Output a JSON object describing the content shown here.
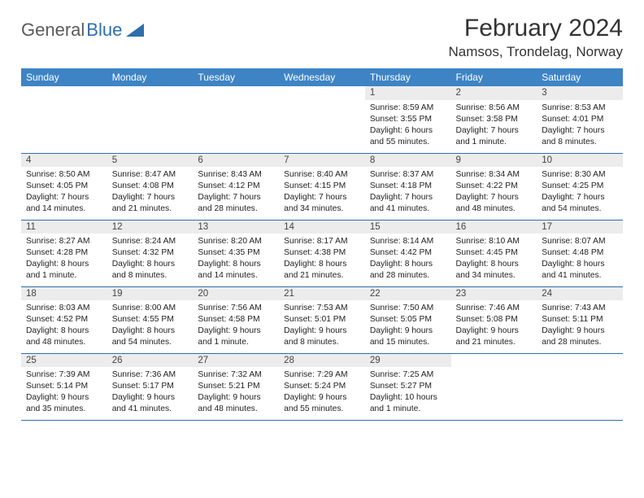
{
  "logo": {
    "text_a": "General",
    "text_b": "Blue"
  },
  "title": "February 2024",
  "location": "Namsos, Trondelag, Norway",
  "colors": {
    "header_bg": "#3e84c5",
    "header_text": "#ffffff",
    "daynum_bg": "#ececed",
    "border": "#2e6fab",
    "page_bg": "#ffffff",
    "body_text": "#222222",
    "logo_gray": "#5a5a5a",
    "logo_blue": "#2e6fab"
  },
  "typography": {
    "title_fontsize": 30,
    "location_fontsize": 17,
    "dayheader_fontsize": 12,
    "daynum_fontsize": 11.5,
    "cell_fontsize": 10.3
  },
  "weekdays": [
    "Sunday",
    "Monday",
    "Tuesday",
    "Wednesday",
    "Thursday",
    "Friday",
    "Saturday"
  ],
  "weeks": [
    [
      null,
      null,
      null,
      null,
      {
        "n": "1",
        "sunrise": "Sunrise: 8:59 AM",
        "sunset": "Sunset: 3:55 PM",
        "day": "Daylight: 6 hours and 55 minutes."
      },
      {
        "n": "2",
        "sunrise": "Sunrise: 8:56 AM",
        "sunset": "Sunset: 3:58 PM",
        "day": "Daylight: 7 hours and 1 minute."
      },
      {
        "n": "3",
        "sunrise": "Sunrise: 8:53 AM",
        "sunset": "Sunset: 4:01 PM",
        "day": "Daylight: 7 hours and 8 minutes."
      }
    ],
    [
      {
        "n": "4",
        "sunrise": "Sunrise: 8:50 AM",
        "sunset": "Sunset: 4:05 PM",
        "day": "Daylight: 7 hours and 14 minutes."
      },
      {
        "n": "5",
        "sunrise": "Sunrise: 8:47 AM",
        "sunset": "Sunset: 4:08 PM",
        "day": "Daylight: 7 hours and 21 minutes."
      },
      {
        "n": "6",
        "sunrise": "Sunrise: 8:43 AM",
        "sunset": "Sunset: 4:12 PM",
        "day": "Daylight: 7 hours and 28 minutes."
      },
      {
        "n": "7",
        "sunrise": "Sunrise: 8:40 AM",
        "sunset": "Sunset: 4:15 PM",
        "day": "Daylight: 7 hours and 34 minutes."
      },
      {
        "n": "8",
        "sunrise": "Sunrise: 8:37 AM",
        "sunset": "Sunset: 4:18 PM",
        "day": "Daylight: 7 hours and 41 minutes."
      },
      {
        "n": "9",
        "sunrise": "Sunrise: 8:34 AM",
        "sunset": "Sunset: 4:22 PM",
        "day": "Daylight: 7 hours and 48 minutes."
      },
      {
        "n": "10",
        "sunrise": "Sunrise: 8:30 AM",
        "sunset": "Sunset: 4:25 PM",
        "day": "Daylight: 7 hours and 54 minutes."
      }
    ],
    [
      {
        "n": "11",
        "sunrise": "Sunrise: 8:27 AM",
        "sunset": "Sunset: 4:28 PM",
        "day": "Daylight: 8 hours and 1 minute."
      },
      {
        "n": "12",
        "sunrise": "Sunrise: 8:24 AM",
        "sunset": "Sunset: 4:32 PM",
        "day": "Daylight: 8 hours and 8 minutes."
      },
      {
        "n": "13",
        "sunrise": "Sunrise: 8:20 AM",
        "sunset": "Sunset: 4:35 PM",
        "day": "Daylight: 8 hours and 14 minutes."
      },
      {
        "n": "14",
        "sunrise": "Sunrise: 8:17 AM",
        "sunset": "Sunset: 4:38 PM",
        "day": "Daylight: 8 hours and 21 minutes."
      },
      {
        "n": "15",
        "sunrise": "Sunrise: 8:14 AM",
        "sunset": "Sunset: 4:42 PM",
        "day": "Daylight: 8 hours and 28 minutes."
      },
      {
        "n": "16",
        "sunrise": "Sunrise: 8:10 AM",
        "sunset": "Sunset: 4:45 PM",
        "day": "Daylight: 8 hours and 34 minutes."
      },
      {
        "n": "17",
        "sunrise": "Sunrise: 8:07 AM",
        "sunset": "Sunset: 4:48 PM",
        "day": "Daylight: 8 hours and 41 minutes."
      }
    ],
    [
      {
        "n": "18",
        "sunrise": "Sunrise: 8:03 AM",
        "sunset": "Sunset: 4:52 PM",
        "day": "Daylight: 8 hours and 48 minutes."
      },
      {
        "n": "19",
        "sunrise": "Sunrise: 8:00 AM",
        "sunset": "Sunset: 4:55 PM",
        "day": "Daylight: 8 hours and 54 minutes."
      },
      {
        "n": "20",
        "sunrise": "Sunrise: 7:56 AM",
        "sunset": "Sunset: 4:58 PM",
        "day": "Daylight: 9 hours and 1 minute."
      },
      {
        "n": "21",
        "sunrise": "Sunrise: 7:53 AM",
        "sunset": "Sunset: 5:01 PM",
        "day": "Daylight: 9 hours and 8 minutes."
      },
      {
        "n": "22",
        "sunrise": "Sunrise: 7:50 AM",
        "sunset": "Sunset: 5:05 PM",
        "day": "Daylight: 9 hours and 15 minutes."
      },
      {
        "n": "23",
        "sunrise": "Sunrise: 7:46 AM",
        "sunset": "Sunset: 5:08 PM",
        "day": "Daylight: 9 hours and 21 minutes."
      },
      {
        "n": "24",
        "sunrise": "Sunrise: 7:43 AM",
        "sunset": "Sunset: 5:11 PM",
        "day": "Daylight: 9 hours and 28 minutes."
      }
    ],
    [
      {
        "n": "25",
        "sunrise": "Sunrise: 7:39 AM",
        "sunset": "Sunset: 5:14 PM",
        "day": "Daylight: 9 hours and 35 minutes."
      },
      {
        "n": "26",
        "sunrise": "Sunrise: 7:36 AM",
        "sunset": "Sunset: 5:17 PM",
        "day": "Daylight: 9 hours and 41 minutes."
      },
      {
        "n": "27",
        "sunrise": "Sunrise: 7:32 AM",
        "sunset": "Sunset: 5:21 PM",
        "day": "Daylight: 9 hours and 48 minutes."
      },
      {
        "n": "28",
        "sunrise": "Sunrise: 7:29 AM",
        "sunset": "Sunset: 5:24 PM",
        "day": "Daylight: 9 hours and 55 minutes."
      },
      {
        "n": "29",
        "sunrise": "Sunrise: 7:25 AM",
        "sunset": "Sunset: 5:27 PM",
        "day": "Daylight: 10 hours and 1 minute."
      },
      null,
      null
    ]
  ]
}
